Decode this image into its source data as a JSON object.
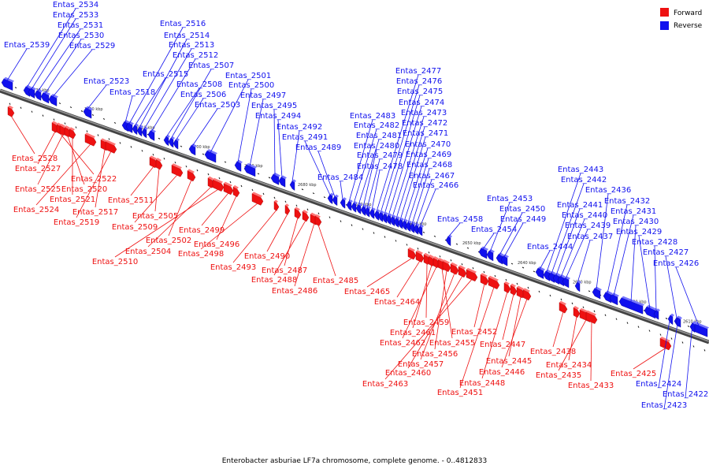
{
  "caption": "Enterobacter asburiae LF7a chromosome, complete genome. - 0..4812833",
  "legend": {
    "forward_label": "Forward",
    "reverse_label": "Reverse",
    "forward_color": "#ee1111",
    "reverse_color": "#1111ee"
  },
  "colors": {
    "forward": "#ee1111",
    "reverse": "#1111ee",
    "backbone": "#555555"
  },
  "ticks": [
    "2730 kbp",
    "2720 kbp",
    "2710 kbp",
    "2700 kbp",
    "2690 kbp",
    "2680 kbp",
    "2670 kbp",
    "2660 kbp",
    "2650 kbp",
    "2640 kbp",
    "2630 kbp",
    "2620 kbp",
    "2610 kbp"
  ],
  "reverse_genes": [
    "Entas_2539",
    "Entas_2534",
    "Entas_2533",
    "Entas_2531",
    "Entas_2530",
    "Entas_2529",
    "Entas_2523",
    "Entas_2518",
    "Entas_2516",
    "Entas_2515",
    "Entas_2514",
    "Entas_2513",
    "Entas_2512",
    "Entas_2508",
    "Entas_2507",
    "Entas_2506",
    "Entas_2503",
    "Entas_2501",
    "Entas_2500",
    "Entas_2497",
    "Entas_2495",
    "Entas_2494",
    "Entas_2492",
    "Entas_2491",
    "Entas_2489",
    "Entas_2484",
    "Entas_2483",
    "Entas_2482",
    "Entas_2481",
    "Entas_2480",
    "Entas_2479",
    "Entas_2478",
    "Entas_2477",
    "Entas_2476",
    "Entas_2475",
    "Entas_2474",
    "Entas_2473",
    "Entas_2472",
    "Entas_2471",
    "Entas_2470",
    "Entas_2469",
    "Entas_2468",
    "Entas_2467",
    "Entas_2466",
    "Entas_2458",
    "Entas_2454",
    "Entas_2453",
    "Entas_2450",
    "Entas_2449",
    "Entas_2444",
    "Entas_2443",
    "Entas_2442",
    "Entas_2441",
    "Entas_2440",
    "Entas_2439",
    "Entas_2437",
    "Entas_2436",
    "Entas_2432",
    "Entas_2431",
    "Entas_2430",
    "Entas_2429",
    "Entas_2428",
    "Entas_2427",
    "Entas_2426",
    "Entas_2424",
    "Entas_2423",
    "Entas_2422"
  ],
  "forward_genes": [
    "Entas_2528",
    "Entas_2527",
    "Entas_2522",
    "Entas_2525",
    "Entas_2520",
    "Entas_2521",
    "Entas_2524",
    "Entas_2517",
    "Entas_2519",
    "Entas_2511",
    "Entas_2505",
    "Entas_2509",
    "Entas_2502",
    "Entas_2504",
    "Entas_2510",
    "Entas_2499",
    "Entas_2496",
    "Entas_2498",
    "Entas_2493",
    "Entas_2490",
    "Entas_2487",
    "Entas_2488",
    "Entas_2486",
    "Entas_2485",
    "Entas_2465",
    "Entas_2464",
    "Entas_2459",
    "Entas_2461",
    "Entas_2462",
    "Entas_2455",
    "Entas_2456",
    "Entas_2457",
    "Entas_2460",
    "Entas_2463",
    "Entas_2452",
    "Entas_2451",
    "Entas_2448",
    "Entas_2447",
    "Entas_2445",
    "Entas_2446",
    "Entas_2438",
    "Entas_2434",
    "Entas_2435",
    "Entas_2433",
    "Entas_2425"
  ]
}
